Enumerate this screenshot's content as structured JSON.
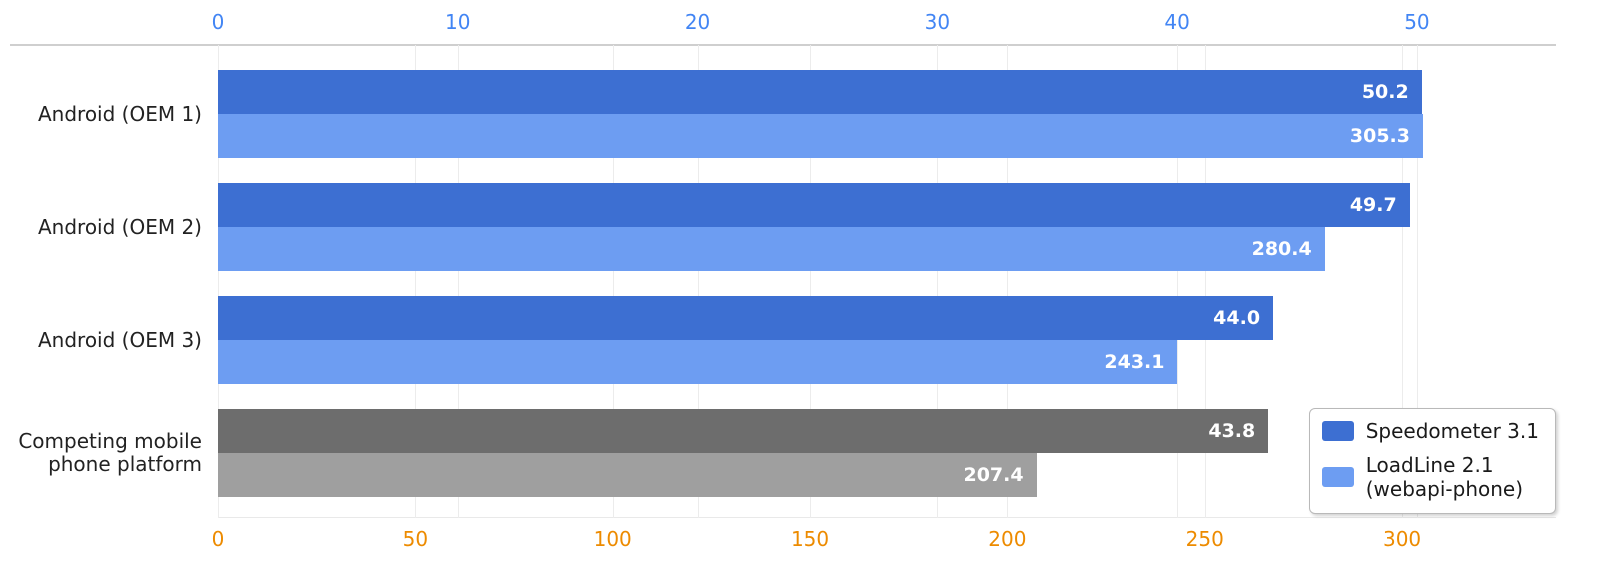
{
  "chart_data": {
    "type": "bar",
    "orientation": "horizontal",
    "grid": "on",
    "legend_position": "bottom-right",
    "categories": [
      "Android (OEM 1)",
      "Android (OEM 2)",
      "Android (OEM 3)",
      "Competing mobile phone platform"
    ],
    "series": [
      {
        "name": "Speedometer 3.1",
        "axis": "top",
        "values": [
          50.2,
          49.7,
          44.0,
          43.8
        ]
      },
      {
        "name": "LoadLine 2.1 (webapi-phone)",
        "axis": "bottom",
        "values": [
          305.3,
          280.4,
          243.1,
          207.4
        ]
      }
    ],
    "axes": {
      "top": {
        "ticks": [
          0,
          10,
          20,
          30,
          40,
          50
        ],
        "max": 55.8,
        "color": "#4285f4"
      },
      "bottom": {
        "ticks": [
          0,
          50,
          100,
          150,
          200,
          250,
          300
        ],
        "max": 339,
        "color": "#ed8b00"
      }
    },
    "colors": {
      "speedometer_blue": "#3d6fd2",
      "loadline_blue": "#6d9df2",
      "competitor_dark_gray": "#6d6d6d",
      "competitor_light_gray": "#9f9f9f"
    },
    "groups": [
      {
        "category_lines": [
          "Android (OEM 1)"
        ],
        "bars": [
          {
            "series": "Speedometer 3.1",
            "value": 50.2,
            "label": "50.2",
            "color": "#3d6fd2"
          },
          {
            "series": "LoadLine 2.1 (webapi-phone)",
            "value": 305.3,
            "label": "305.3",
            "color": "#6d9df2"
          }
        ]
      },
      {
        "category_lines": [
          "Android (OEM 2)"
        ],
        "bars": [
          {
            "series": "Speedometer 3.1",
            "value": 49.7,
            "label": "49.7",
            "color": "#3d6fd2"
          },
          {
            "series": "LoadLine 2.1 (webapi-phone)",
            "value": 280.4,
            "label": "280.4",
            "color": "#6d9df2"
          }
        ]
      },
      {
        "category_lines": [
          "Android (OEM 3)"
        ],
        "bars": [
          {
            "series": "Speedometer 3.1",
            "value": 44.0,
            "label": "44.0",
            "color": "#3d6fd2"
          },
          {
            "series": "LoadLine 2.1 (webapi-phone)",
            "value": 243.1,
            "label": "243.1",
            "color": "#6d9df2"
          }
        ]
      },
      {
        "category_lines": [
          "Competing mobile",
          "phone platform"
        ],
        "bars": [
          {
            "series": "Speedometer 3.1",
            "value": 43.8,
            "label": "43.8",
            "color": "#6d6d6d"
          },
          {
            "series": "LoadLine 2.1 (webapi-phone)",
            "value": 207.4,
            "label": "207.4",
            "color": "#9f9f9f"
          }
        ]
      }
    ],
    "legend": {
      "items": [
        {
          "label_lines": [
            "Speedometer 3.1"
          ],
          "color": "#3d6fd2"
        },
        {
          "label_lines": [
            "LoadLine 2.1",
            "(webapi-phone)"
          ],
          "color": "#6d9df2"
        }
      ]
    }
  }
}
